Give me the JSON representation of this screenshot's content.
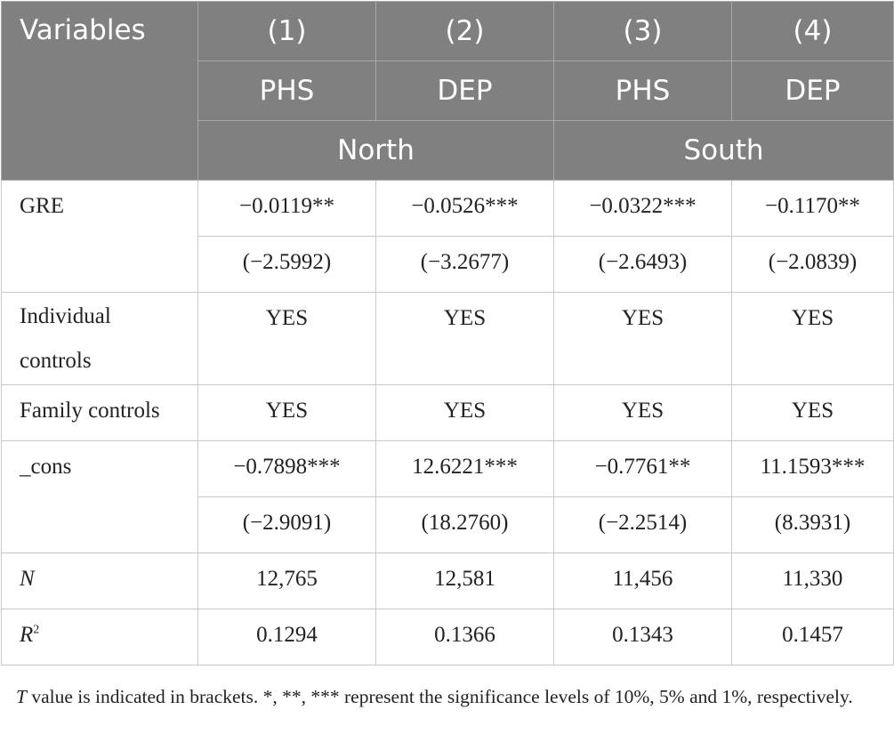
{
  "header": {
    "variables": "Variables",
    "columns": [
      "(1)",
      "(2)",
      "(3)",
      "(4)"
    ],
    "dep_vars": [
      "PHS",
      "DEP",
      "PHS",
      "DEP"
    ],
    "groups": [
      "North",
      "South"
    ]
  },
  "rows": {
    "gre": {
      "label": "GRE",
      "coef": [
        "−0.0119**",
        "−0.0526***",
        "−0.0322***",
        "−0.1170**"
      ],
      "t": [
        "(−2.5992)",
        "(−3.2677)",
        "(−2.6493)",
        "(−2.0839)"
      ]
    },
    "individual": {
      "label_line1": "Individual",
      "label_line2": "controls",
      "values": [
        "YES",
        "YES",
        "YES",
        "YES"
      ]
    },
    "family": {
      "label": "Family controls",
      "values": [
        "YES",
        "YES",
        "YES",
        "YES"
      ]
    },
    "cons": {
      "label": "_cons",
      "coef": [
        "−0.7898***",
        "12.6221***",
        "−0.7761**",
        "11.1593***"
      ],
      "t": [
        "(−2.9091)",
        "(18.2760)",
        "(−2.2514)",
        "(8.3931)"
      ]
    },
    "n": {
      "label": "N",
      "values": [
        "12,765",
        "12,581",
        "11,456",
        "11,330"
      ]
    },
    "r2": {
      "label": "R",
      "sup": "2",
      "values": [
        "0.1294",
        "0.1366",
        "0.1343",
        "0.1457"
      ]
    }
  },
  "note": {
    "t_letter": "T",
    "text": " value is indicated in brackets. *, **, *** represent the significance levels of 10%, 5% and 1%, respectively."
  }
}
